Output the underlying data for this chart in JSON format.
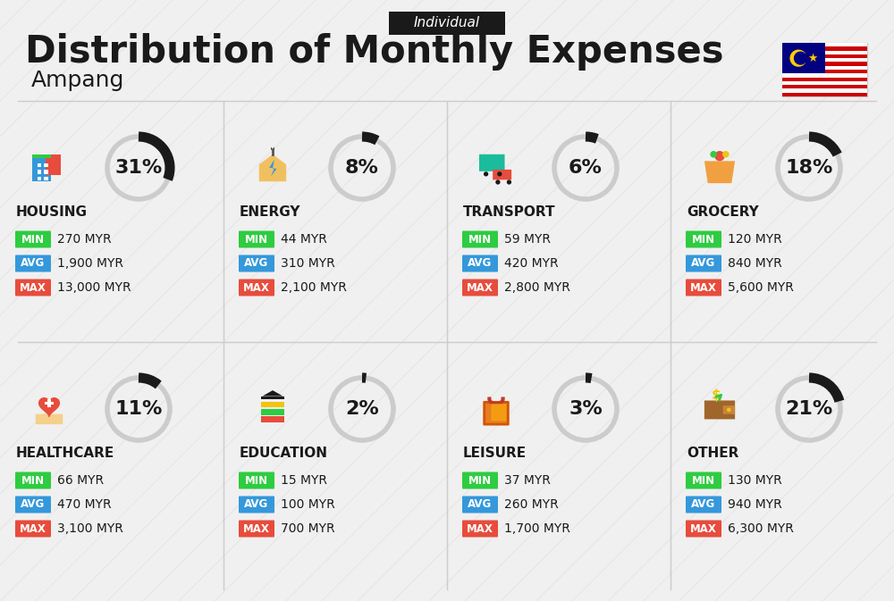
{
  "title": "Distribution of Monthly Expenses",
  "subtitle": "Ampang",
  "tag": "Individual",
  "bg_color": "#f0f0f0",
  "categories": [
    {
      "name": "HOUSING",
      "pct": 31,
      "min": "270 MYR",
      "avg": "1,900 MYR",
      "max": "13,000 MYR",
      "icon": "housing",
      "row": 0,
      "col": 0
    },
    {
      "name": "ENERGY",
      "pct": 8,
      "min": "44 MYR",
      "avg": "310 MYR",
      "max": "2,100 MYR",
      "icon": "energy",
      "row": 0,
      "col": 1
    },
    {
      "name": "TRANSPORT",
      "pct": 6,
      "min": "59 MYR",
      "avg": "420 MYR",
      "max": "2,800 MYR",
      "icon": "transport",
      "row": 0,
      "col": 2
    },
    {
      "name": "GROCERY",
      "pct": 18,
      "min": "120 MYR",
      "avg": "840 MYR",
      "max": "5,600 MYR",
      "icon": "grocery",
      "row": 0,
      "col": 3
    },
    {
      "name": "HEALTHCARE",
      "pct": 11,
      "min": "66 MYR",
      "avg": "470 MYR",
      "max": "3,100 MYR",
      "icon": "healthcare",
      "row": 1,
      "col": 0
    },
    {
      "name": "EDUCATION",
      "pct": 2,
      "min": "15 MYR",
      "avg": "100 MYR",
      "max": "700 MYR",
      "icon": "education",
      "row": 1,
      "col": 1
    },
    {
      "name": "LEISURE",
      "pct": 3,
      "min": "37 MYR",
      "avg": "260 MYR",
      "max": "1,700 MYR",
      "icon": "leisure",
      "row": 1,
      "col": 2
    },
    {
      "name": "OTHER",
      "pct": 21,
      "min": "130 MYR",
      "avg": "940 MYR",
      "max": "6,300 MYR",
      "icon": "other",
      "row": 1,
      "col": 3
    }
  ],
  "min_color": "#2ecc40",
  "avg_color": "#3498db",
  "max_color": "#e74c3c",
  "donut_filled_color": "#1a1a1a",
  "donut_empty_color": "#cccccc",
  "label_color": "#ffffff",
  "text_color": "#1a1a1a"
}
